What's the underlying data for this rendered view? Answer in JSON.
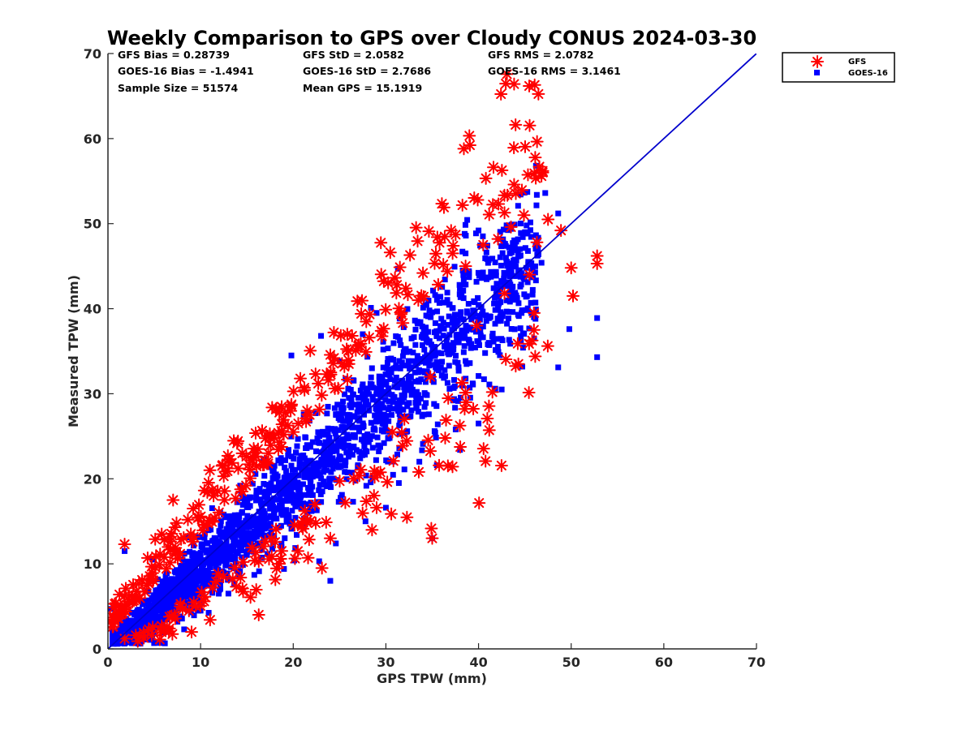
{
  "chart_data": {
    "type": "scatter",
    "title": "Weekly Comparison to GPS over Cloudy CONUS 2024-03-30",
    "xlabel": "GPS TPW (mm)",
    "ylabel": "Measured TPW (mm)",
    "xlim": [
      0,
      70
    ],
    "ylim": [
      0,
      70
    ],
    "xticks": [
      "0",
      "10",
      "20",
      "30",
      "40",
      "50",
      "60",
      "70"
    ],
    "yticks": [
      "0",
      "10",
      "20",
      "30",
      "40",
      "50",
      "60",
      "70"
    ],
    "grid": false,
    "legend_position": "top-right, outside the axes",
    "stats": [
      [
        "GFS Bias = 0.28739",
        "GFS StD = 2.0582",
        "GFS RMS = 2.0782"
      ],
      [
        "GOES-16 Bias = -1.4941",
        "GOES-16 StD = 2.7686",
        "GOES-16 RMS = 3.1461"
      ],
      [
        "Sample Size = 51574",
        "Mean GPS = 15.1919"
      ]
    ],
    "reference_line": {
      "from": [
        0,
        0
      ],
      "to": [
        70,
        70
      ],
      "color": "#0000cc"
    },
    "series": [
      {
        "name": "GFS",
        "marker": "asterisk",
        "color": "#ff0000",
        "points": [
          [
            1.8,
            12.3
          ],
          [
            5.1,
            12.9
          ],
          [
            5.8,
            13.5
          ],
          [
            7.4,
            14.8
          ],
          [
            9.2,
            16.5
          ],
          [
            11.0,
            21.0
          ],
          [
            11.4,
            18.0
          ],
          [
            12.5,
            20.3
          ],
          [
            13.0,
            22.1
          ],
          [
            14.5,
            23.0
          ],
          [
            16.2,
            23.5
          ],
          [
            17.5,
            24.8
          ],
          [
            18.8,
            26.4
          ],
          [
            20.0,
            25.5
          ],
          [
            21.5,
            28.0
          ],
          [
            22.7,
            31.2
          ],
          [
            23.6,
            32.3
          ],
          [
            24.4,
            34.2
          ],
          [
            26.0,
            33.5
          ],
          [
            27.0,
            35.6
          ],
          [
            28.2,
            36.6
          ],
          [
            29.5,
            37.4
          ],
          [
            31.2,
            42.8
          ],
          [
            33.5,
            41.0
          ],
          [
            36.2,
            45.2
          ],
          [
            37.2,
            46.5
          ],
          [
            38.6,
            45.0
          ],
          [
            40.5,
            47.5
          ],
          [
            42.1,
            48.2
          ],
          [
            43.5,
            49.6
          ],
          [
            44.9,
            51.0
          ],
          [
            46.3,
            47.8
          ],
          [
            47.5,
            50.5
          ],
          [
            48.9,
            49.2
          ],
          [
            50.0,
            44.8
          ],
          [
            50.2,
            41.5
          ],
          [
            52.8,
            46.2
          ],
          [
            52.8,
            45.3
          ],
          [
            46.0,
            39.5
          ],
          [
            44.3,
            33.5
          ],
          [
            41.5,
            30.2
          ],
          [
            38.5,
            28.2
          ],
          [
            36.4,
            24.8
          ],
          [
            29.0,
            16.6
          ],
          [
            23.1,
            9.5
          ],
          [
            21.6,
            10.7
          ],
          [
            20.5,
            11.5
          ],
          [
            18.5,
            10.0
          ],
          [
            24.0,
            13.0
          ],
          [
            35.0,
            13.0
          ],
          [
            3.0,
            1.6
          ],
          [
            1.8,
            1.2
          ],
          [
            0.6,
            3.5
          ],
          [
            30.7,
            25.5
          ],
          [
            26.5,
            20.0
          ],
          [
            32.0,
            27.0
          ],
          [
            34.8,
            32.0
          ],
          [
            39.8,
            38.0
          ],
          [
            42.8,
            41.8
          ],
          [
            45.5,
            44.0
          ]
        ]
      },
      {
        "name": "GOES-16",
        "marker": "square",
        "color": "#0000ff",
        "points": [
          [
            47.2,
            53.6
          ],
          [
            48.6,
            51.2
          ],
          [
            40.0,
            49.2
          ],
          [
            38.5,
            48.8
          ],
          [
            31.3,
            44.7
          ],
          [
            29.0,
            39.5
          ],
          [
            27.5,
            37.0
          ],
          [
            23.0,
            36.8
          ],
          [
            19.8,
            34.5
          ],
          [
            25.0,
            33.8
          ],
          [
            28.5,
            33.0
          ],
          [
            30.8,
            34.0
          ],
          [
            48.6,
            33.1
          ],
          [
            52.8,
            34.3
          ],
          [
            49.8,
            37.6
          ],
          [
            52.8,
            38.9
          ],
          [
            46.0,
            36.5
          ],
          [
            42.5,
            30.5
          ],
          [
            40.0,
            26.5
          ],
          [
            38.0,
            23.4
          ],
          [
            35.5,
            21.6
          ],
          [
            34.0,
            24.1
          ],
          [
            32.0,
            21.1
          ],
          [
            31.4,
            19.5
          ],
          [
            30.0,
            16.6
          ],
          [
            27.8,
            15.0
          ],
          [
            24.6,
            12.4
          ],
          [
            22.8,
            10.3
          ],
          [
            24.0,
            8.0
          ],
          [
            19.0,
            9.4
          ],
          [
            15.8,
            8.7
          ],
          [
            13.0,
            6.5
          ],
          [
            10.0,
            4.5
          ],
          [
            7.5,
            3.2
          ],
          [
            4.5,
            1.5
          ],
          [
            2.2,
            1.0
          ],
          [
            0.3,
            4.7
          ],
          [
            0.5,
            2.8
          ],
          [
            1.8,
            11.5
          ],
          [
            4.8,
            10.5
          ],
          [
            35.0,
            13.0
          ],
          [
            41.0,
            35.8
          ],
          [
            44.5,
            42.6
          ],
          [
            46.8,
            45.4
          ],
          [
            43.3,
            47.2
          ],
          [
            35.2,
            28.8
          ],
          [
            37.3,
            30.7
          ],
          [
            29.8,
            24.2
          ]
        ]
      }
    ]
  }
}
